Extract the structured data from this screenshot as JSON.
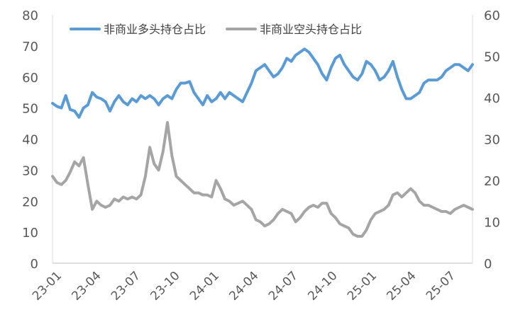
{
  "chart_data": {
    "type": "line",
    "title": "",
    "xlabel": "",
    "ylabel": "",
    "y2label": "",
    "ylim": [
      0,
      80
    ],
    "y2lim": [
      0,
      60
    ],
    "yticks": [
      0,
      10,
      20,
      30,
      40,
      50,
      60,
      70,
      80
    ],
    "y2ticks": [
      0,
      10,
      20,
      30,
      40,
      50,
      60
    ],
    "x_ticks": [
      "23-01",
      "23-04",
      "23-07",
      "23-10",
      "24-01",
      "24-04",
      "24-07",
      "24-10",
      "25-01",
      "25-04",
      "25-07"
    ],
    "x_start": "2023-01",
    "grid": false,
    "legend_position": "top-left",
    "series": [
      {
        "name": "非商业多头持仓占比",
        "axis": "left",
        "color": "#5b9bd5",
        "values": [
          51.5,
          50.5,
          50,
          54,
          49.5,
          49,
          47,
          50,
          51,
          55,
          53.5,
          53,
          52,
          49,
          52,
          54,
          52,
          51,
          53,
          52,
          54,
          53,
          54,
          53,
          51,
          53,
          54,
          53,
          56,
          58,
          58,
          58.5,
          55,
          53,
          51,
          54,
          52,
          53,
          55,
          53,
          55,
          54,
          53,
          52,
          55,
          58,
          62,
          63,
          64,
          62,
          60,
          61,
          63,
          66,
          65,
          67,
          68,
          69,
          68,
          66,
          64,
          61,
          59,
          63,
          66,
          67,
          64,
          62,
          60,
          59,
          61,
          65,
          64,
          62,
          59,
          60,
          62,
          65,
          60,
          56,
          53,
          53,
          54,
          55,
          58,
          59,
          59,
          59,
          60,
          62,
          63,
          64,
          64,
          63,
          62,
          64
        ]
      },
      {
        "name": "非商业空头持仓占比",
        "axis": "right",
        "color": "#a5a5a5",
        "values": [
          21,
          19.5,
          19,
          20,
          22,
          24.5,
          23.5,
          25.5,
          19,
          13,
          15,
          14,
          13.5,
          14,
          15.5,
          15,
          16,
          15.5,
          16,
          15.5,
          16.5,
          21,
          28,
          24,
          22.5,
          27,
          34,
          26,
          21,
          20,
          19,
          18,
          17,
          17,
          16.5,
          16.5,
          16,
          20,
          18,
          15.5,
          15,
          14,
          14.5,
          15,
          14,
          13,
          10.5,
          10,
          9,
          9.5,
          10.5,
          12,
          13,
          12.5,
          12,
          10,
          11,
          12.5,
          13.5,
          14,
          13.5,
          14.5,
          14.5,
          12,
          11,
          9.5,
          9,
          8.5,
          7,
          6.5,
          6.5,
          8,
          10.5,
          12,
          12.5,
          13,
          14,
          16.5,
          17,
          16,
          17,
          18,
          17,
          15,
          14,
          14,
          13.5,
          13,
          12.5,
          12.5,
          12,
          13,
          13.5,
          14,
          13.5,
          13
        ]
      }
    ]
  }
}
